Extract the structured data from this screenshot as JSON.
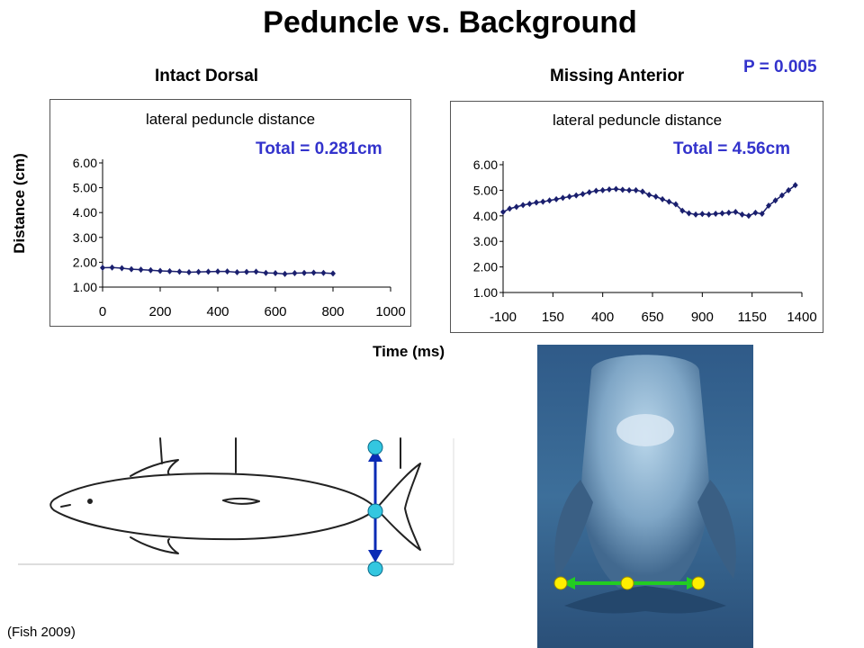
{
  "title": "Peduncle vs. Background",
  "p_value": "P = 0.005",
  "shared_ylabel": "Distance (cm)",
  "shared_xlabel": "Time (ms)",
  "citation": "(Fish 2009)",
  "colors": {
    "series": "#1a1f6e",
    "annotation": "#3333cc",
    "diagram_arrow": "#0b2bb5",
    "diagram_node": "#33c7e0",
    "photo_arrow": "#22cc22",
    "photo_node": "#ffee00"
  },
  "illustrations": {
    "left": "dolphin-outline-drawing",
    "right": "dolphin-photo"
  },
  "chart_data": [
    {
      "type": "line",
      "panel_heading": "Intact Dorsal",
      "title": "lateral peduncle distance",
      "total_label": "Total = 0.281cm",
      "xlim": [
        0,
        1000
      ],
      "ylim": [
        1.0,
        6.0
      ],
      "xticks": [
        0,
        200,
        400,
        600,
        800,
        1000
      ],
      "xtick_labels": [
        "0",
        "200",
        "400",
        "600",
        "800",
        "1000"
      ],
      "yticks": [
        1,
        2,
        3,
        4,
        5,
        6
      ],
      "ytick_labels": [
        "1.00",
        "2.00",
        "3.00",
        "4.00",
        "5.00",
        "6.00"
      ],
      "grid": false,
      "series": [
        {
          "x": [
            0,
            33,
            67,
            100,
            133,
            167,
            200,
            233,
            267,
            300,
            333,
            367,
            400,
            433,
            467,
            500,
            533,
            567,
            600,
            633,
            667,
            700,
            733,
            767,
            800
          ],
          "y": [
            1.78,
            1.79,
            1.76,
            1.72,
            1.7,
            1.68,
            1.65,
            1.64,
            1.62,
            1.6,
            1.61,
            1.62,
            1.63,
            1.63,
            1.6,
            1.61,
            1.62,
            1.57,
            1.56,
            1.53,
            1.56,
            1.57,
            1.58,
            1.57,
            1.55
          ]
        }
      ]
    },
    {
      "type": "line",
      "panel_heading": "Missing Anterior",
      "title": "lateral peduncle distance",
      "total_label": "Total = 4.56cm",
      "xlim": [
        -100,
        1400
      ],
      "ylim": [
        1.0,
        6.0
      ],
      "xticks": [
        -100,
        150,
        400,
        650,
        900,
        1150,
        1400
      ],
      "xtick_labels": [
        "-100",
        "150",
        "400",
        "650",
        "900",
        "1150",
        "1400"
      ],
      "yticks": [
        1,
        2,
        3,
        4,
        5,
        6
      ],
      "ytick_labels": [
        "1.00",
        "2.00",
        "3.00",
        "4.00",
        "5.00",
        "6.00"
      ],
      "grid": false,
      "series": [
        {
          "x": [
            -100,
            -67,
            -33,
            0,
            33,
            67,
            100,
            133,
            167,
            200,
            233,
            267,
            300,
            333,
            367,
            400,
            433,
            467,
            500,
            533,
            567,
            600,
            633,
            667,
            700,
            733,
            767,
            800,
            833,
            867,
            900,
            933,
            967,
            1000,
            1033,
            1067,
            1100,
            1133,
            1167,
            1200,
            1233,
            1267,
            1300,
            1333,
            1367
          ],
          "y": [
            4.15,
            4.28,
            4.35,
            4.42,
            4.47,
            4.52,
            4.55,
            4.6,
            4.65,
            4.7,
            4.75,
            4.8,
            4.85,
            4.92,
            4.98,
            5.0,
            5.03,
            5.05,
            5.02,
            5.0,
            5.0,
            4.95,
            4.82,
            4.75,
            4.65,
            4.55,
            4.45,
            4.2,
            4.1,
            4.05,
            4.07,
            4.05,
            4.08,
            4.1,
            4.12,
            4.15,
            4.05,
            4.0,
            4.12,
            4.08,
            4.4,
            4.6,
            4.8,
            5.0,
            5.2
          ]
        }
      ]
    }
  ]
}
